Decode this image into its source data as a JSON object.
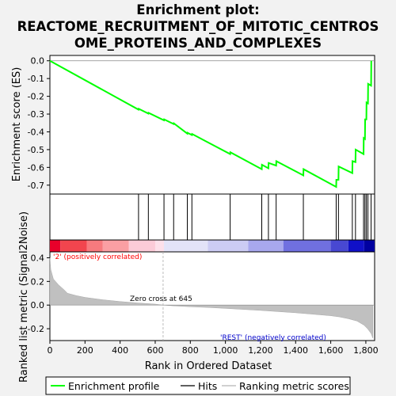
{
  "title_line1": "Enrichment plot:",
  "title_line2": "REACTOME_RECRUITMENT_OF_MITOTIC_CENTROS",
  "title_line3": "OME_PROTEINS_AND_COMPLEXES",
  "colors": {
    "enrichment_line": "#00ff00",
    "hits": "#000000",
    "ranking_fill": "#c0c0c0",
    "zero_line": "#888888",
    "positive_text": "#ff0000",
    "negative_text": "#0000cc"
  },
  "chart_data": [
    {
      "type": "line",
      "name": "enrichment",
      "ylabel": "Enrichment score (ES)",
      "ylim": [
        -0.75,
        0.03
      ],
      "yticks": [
        0.0,
        -0.1,
        -0.2,
        -0.3,
        -0.4,
        -0.5,
        -0.6,
        -0.7
      ],
      "ytick_labels": [
        "0.0",
        "-0.1",
        "-0.2",
        "-0.3",
        "-0.4",
        "-0.5",
        "-0.6",
        "-0.7"
      ],
      "xlim": [
        0,
        1850
      ],
      "grid": false,
      "series": [
        {
          "name": "Enrichment profile",
          "x": [
            0,
            505,
            506,
            561,
            562,
            650,
            651,
            705,
            706,
            783,
            784,
            809,
            810,
            1027,
            1028,
            1207,
            1208,
            1245,
            1246,
            1289,
            1290,
            1444,
            1445,
            1631,
            1632,
            1644,
            1645,
            1723,
            1724,
            1741,
            1742,
            1787,
            1788,
            1795,
            1796,
            1803,
            1804,
            1812,
            1813,
            1830,
            1831
          ],
          "y": [
            0.0,
            -0.275,
            -0.27,
            -0.297,
            -0.293,
            -0.335,
            -0.33,
            -0.356,
            -0.352,
            -0.41,
            -0.405,
            -0.418,
            -0.412,
            -0.525,
            -0.515,
            -0.61,
            -0.585,
            -0.605,
            -0.575,
            -0.59,
            -0.565,
            -0.645,
            -0.61,
            -0.71,
            -0.67,
            -0.67,
            -0.595,
            -0.632,
            -0.565,
            -0.57,
            -0.5,
            -0.525,
            -0.435,
            -0.44,
            -0.33,
            -0.33,
            -0.235,
            -0.24,
            -0.13,
            -0.14,
            0.0
          ]
        }
      ]
    },
    {
      "type": "scatter",
      "name": "hits",
      "x": [
        505,
        561,
        650,
        705,
        783,
        809,
        1027,
        1207,
        1245,
        1289,
        1444,
        1631,
        1644,
        1723,
        1741,
        1787,
        1795,
        1803,
        1812,
        1830
      ]
    },
    {
      "type": "heatmap",
      "name": "rank-colorbar",
      "segments": [
        {
          "from": 0,
          "to": 60,
          "color": "#e8002a"
        },
        {
          "from": 60,
          "to": 210,
          "color": "#f2454e"
        },
        {
          "from": 210,
          "to": 300,
          "color": "#f77a7e"
        },
        {
          "from": 300,
          "to": 450,
          "color": "#fa9fa3"
        },
        {
          "from": 450,
          "to": 600,
          "color": "#fccbd8"
        },
        {
          "from": 600,
          "to": 650,
          "color": "#fde0ea"
        },
        {
          "from": 650,
          "to": 900,
          "color": "#e3e3f8"
        },
        {
          "from": 900,
          "to": 1130,
          "color": "#ccccf4"
        },
        {
          "from": 1130,
          "to": 1330,
          "color": "#a8a8ee"
        },
        {
          "from": 1330,
          "to": 1600,
          "color": "#7070e0"
        },
        {
          "from": 1600,
          "to": 1700,
          "color": "#4848d2"
        },
        {
          "from": 1700,
          "to": 1790,
          "color": "#1010c8"
        },
        {
          "from": 1790,
          "to": 1850,
          "color": "#0000a0"
        }
      ]
    },
    {
      "type": "area",
      "name": "ranking-metric",
      "ylabel": "Ranked list metric (Signal2Noise)",
      "xlabel": "Rank in Ordered Dataset",
      "ylim": [
        -0.3,
        0.45
      ],
      "yticks": [
        -0.2,
        0.0,
        0.2,
        0.4
      ],
      "ytick_labels": [
        "-0.2",
        "0.0",
        "0.2",
        "0.4"
      ],
      "xlim": [
        0,
        1850
      ],
      "xticks": [
        0,
        200,
        400,
        600,
        800,
        1000,
        1200,
        1400,
        1600,
        1800
      ],
      "xtick_labels": [
        "0",
        "200",
        "400",
        "600",
        "800",
        "1,000",
        "1,200",
        "1,400",
        "1,600",
        "1,800"
      ],
      "x": [
        0,
        5,
        20,
        50,
        80,
        100,
        150,
        200,
        300,
        400,
        500,
        600,
        645,
        700,
        800,
        900,
        1000,
        1200,
        1400,
        1600,
        1650,
        1700,
        1750,
        1790,
        1810,
        1830,
        1840
      ],
      "y": [
        0.4,
        0.3,
        0.22,
        0.17,
        0.13,
        0.1,
        0.08,
        0.065,
        0.045,
        0.03,
        0.018,
        0.008,
        0.0,
        -0.006,
        -0.014,
        -0.02,
        -0.028,
        -0.045,
        -0.065,
        -0.09,
        -0.1,
        -0.115,
        -0.135,
        -0.17,
        -0.2,
        -0.24,
        -0.28
      ],
      "zero_cross_label": "Zero cross at 645",
      "zero_cross": 645,
      "positive_label": "'2' (positively correlated)",
      "negative_label": "'REST' (negatively correlated)"
    }
  ],
  "legend": {
    "items": [
      {
        "label": "Enrichment profile",
        "color": "#00ff00"
      },
      {
        "label": "Hits",
        "color": "#000000"
      },
      {
        "label": "Ranking metric scores",
        "color": "#c0c0c0"
      }
    ]
  }
}
